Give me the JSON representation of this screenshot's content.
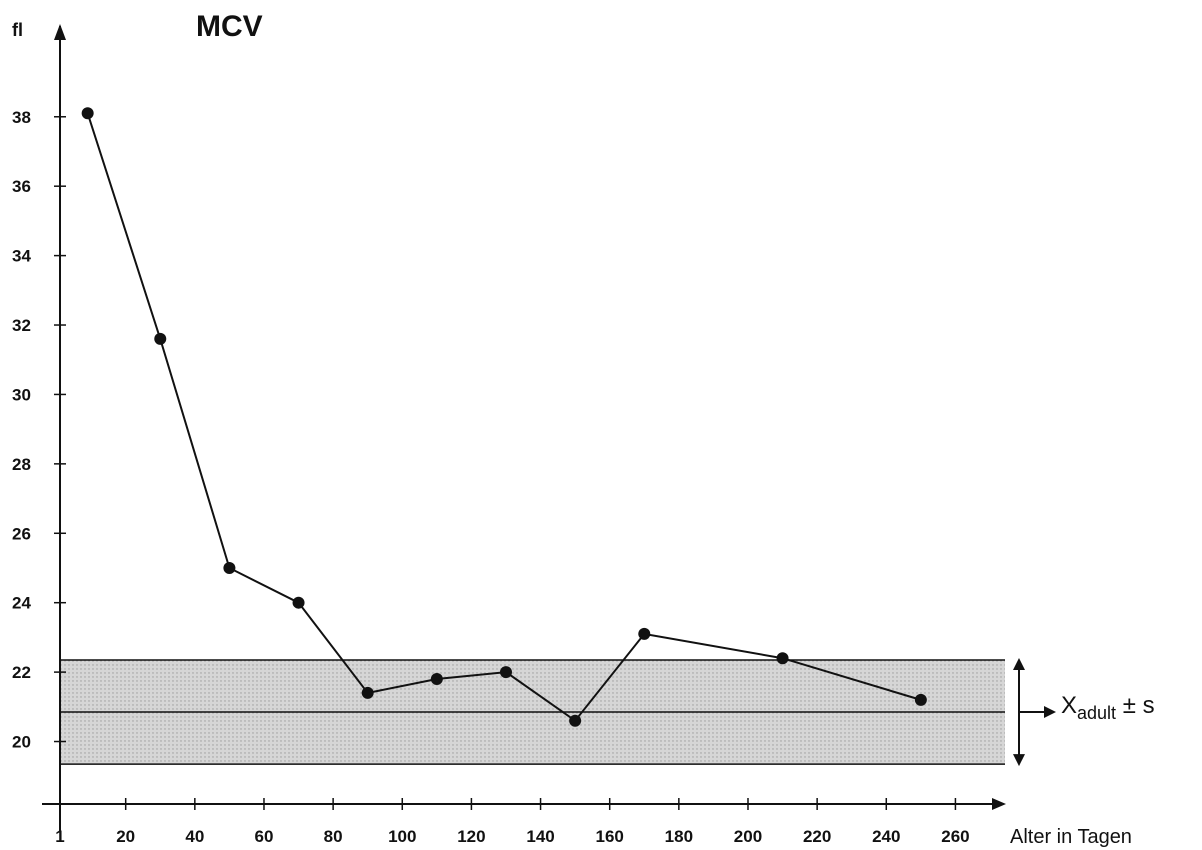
{
  "chart_data": {
    "type": "line",
    "title": "MCV",
    "ylabel": "fl",
    "xlabel": "Alter in Tagen",
    "xlim": [
      1,
      270
    ],
    "ylim": [
      18.2,
      40.5
    ],
    "x_ticks": [
      1,
      20,
      40,
      60,
      80,
      100,
      120,
      140,
      160,
      180,
      200,
      220,
      240,
      260
    ],
    "y_ticks": [
      20,
      22,
      24,
      26,
      28,
      30,
      32,
      34,
      36,
      38
    ],
    "series": [
      {
        "x": [
          9,
          30,
          50,
          70,
          90,
          110,
          130,
          150,
          170,
          210,
          250
        ],
        "y": [
          38.1,
          31.6,
          25.0,
          24.0,
          21.4,
          21.8,
          22.0,
          20.6,
          23.1,
          22.4,
          21.2
        ]
      }
    ],
    "reference_band": {
      "mean": 20.85,
      "lower": 19.35,
      "upper": 22.35,
      "label_main": "X",
      "label_sub": "adult",
      "label_suffix": " ± s"
    },
    "grid": false,
    "colors": {
      "line": "#111111",
      "band": "#d6d6d6"
    }
  }
}
